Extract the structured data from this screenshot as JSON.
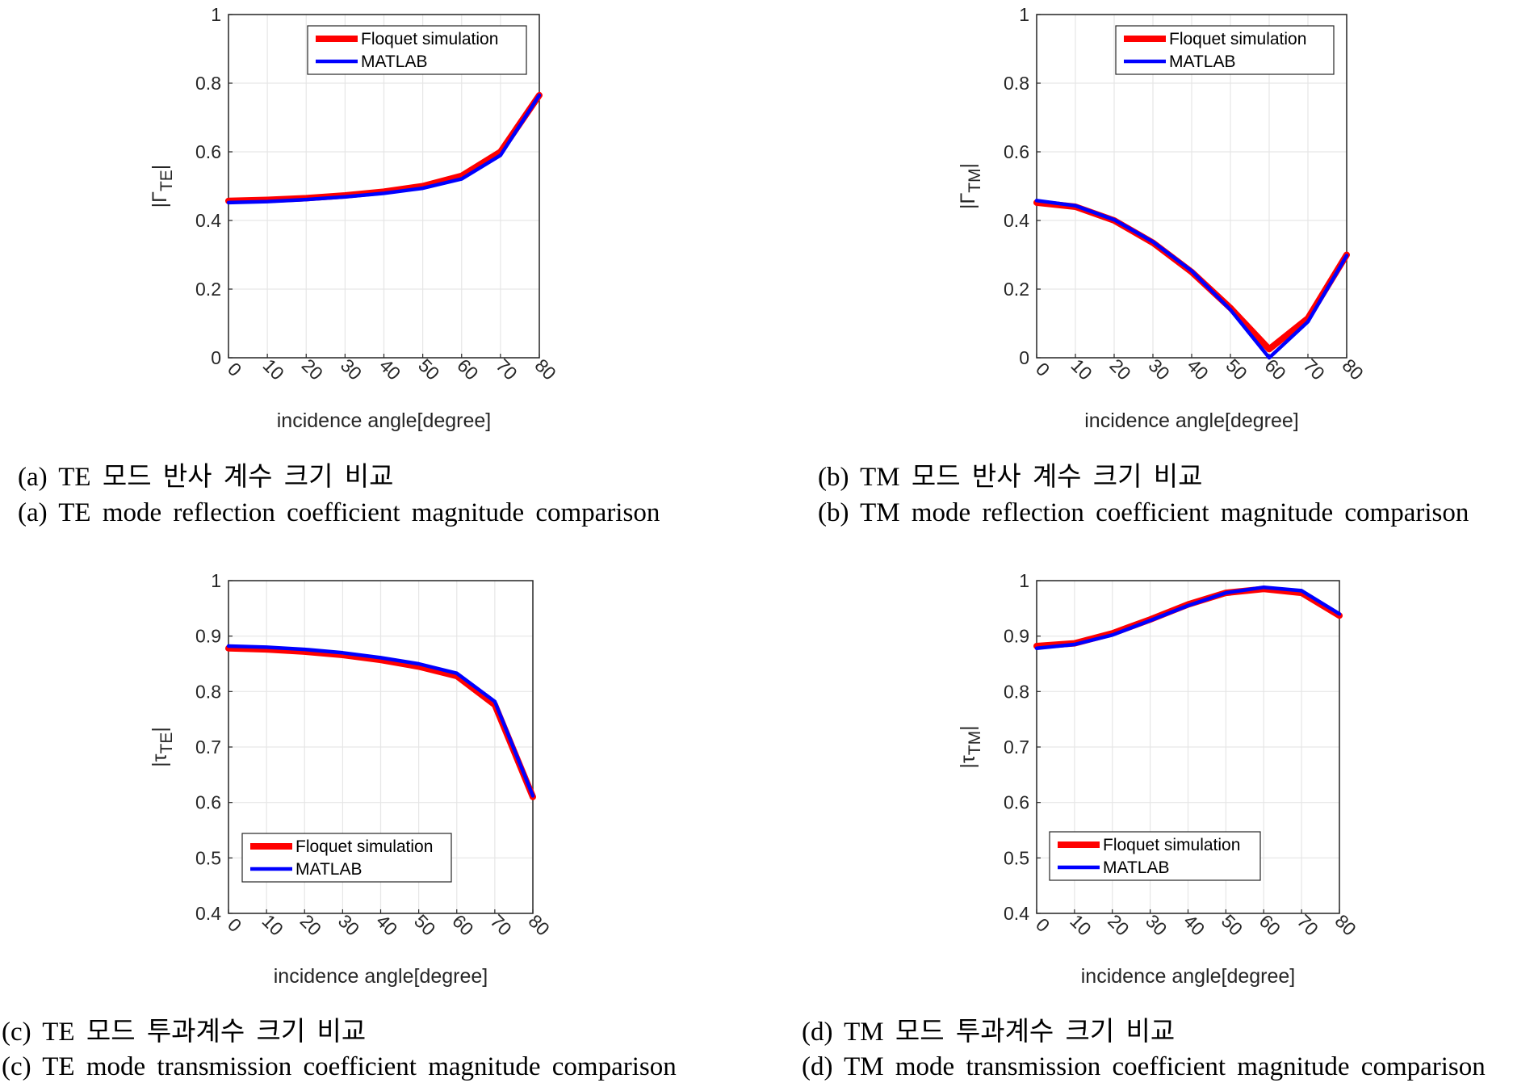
{
  "chart_data": [
    {
      "id": "a",
      "type": "line",
      "xlabel": "incidence angle[degree]",
      "ylabel_main": "|Γ",
      "ylabel_sub": "TE",
      "ylabel_end": "|",
      "x": [
        0,
        10,
        20,
        30,
        40,
        50,
        60,
        70,
        80
      ],
      "xlim": [
        0,
        80
      ],
      "ylim": [
        0,
        1
      ],
      "yticks": [
        0,
        0.2,
        0.4,
        0.6,
        0.8,
        1
      ],
      "ytick_labels": [
        "0",
        "0.2",
        "0.4",
        "0.6",
        "0.8",
        "1"
      ],
      "xtick_labels": [
        "0",
        "10",
        "20",
        "30",
        "40",
        "50",
        "60",
        "70",
        "80"
      ],
      "legend_position": "top-right",
      "series": [
        {
          "name": "Floquet simulation",
          "color": "#ff0000",
          "values": [
            0.457,
            0.46,
            0.465,
            0.473,
            0.484,
            0.5,
            0.53,
            0.6,
            0.765
          ]
        },
        {
          "name": "MATLAB",
          "color": "#0000ff",
          "values": [
            0.452,
            0.455,
            0.461,
            0.469,
            0.479,
            0.494,
            0.521,
            0.59,
            0.765
          ]
        }
      ],
      "caption_ko": "(a) TE 모드 반사 계수 크기 비교",
      "caption_en": "(a) TE mode reflection coefficient magnitude comparison"
    },
    {
      "id": "b",
      "type": "line",
      "xlabel": "incidence angle[degree]",
      "ylabel_main": "|Γ",
      "ylabel_sub": "TM",
      "ylabel_end": "|",
      "x": [
        0,
        10,
        20,
        30,
        40,
        50,
        60,
        70,
        80
      ],
      "xlim": [
        0,
        80
      ],
      "ylim": [
        0,
        1
      ],
      "yticks": [
        0,
        0.2,
        0.4,
        0.6,
        0.8,
        1
      ],
      "ytick_labels": [
        "0",
        "0.2",
        "0.4",
        "0.6",
        "0.8",
        "1"
      ],
      "xtick_labels": [
        "0",
        "10",
        "20",
        "30",
        "40",
        "50",
        "60",
        "70",
        "80"
      ],
      "legend_position": "top-right",
      "series": [
        {
          "name": "Floquet simulation",
          "color": "#ff0000",
          "values": [
            0.452,
            0.44,
            0.4,
            0.335,
            0.25,
            0.145,
            0.025,
            0.115,
            0.3
          ]
        },
        {
          "name": "MATLAB",
          "color": "#0000ff",
          "values": [
            0.458,
            0.443,
            0.402,
            0.338,
            0.253,
            0.14,
            0.0,
            0.105,
            0.298
          ]
        }
      ],
      "caption_ko": "(b) TM 모드 반사 계수 크기 비교",
      "caption_en": "(b) TM mode reflection coefficient magnitude comparison"
    },
    {
      "id": "c",
      "type": "line",
      "xlabel": "incidence angle[degree]",
      "ylabel_main": "|τ",
      "ylabel_sub": "TE",
      "ylabel_end": "|",
      "x": [
        0,
        10,
        20,
        30,
        40,
        50,
        60,
        70,
        80
      ],
      "xlim": [
        0,
        80
      ],
      "ylim": [
        0.4,
        1
      ],
      "yticks": [
        0.4,
        0.5,
        0.6,
        0.7,
        0.8,
        0.9,
        1
      ],
      "ytick_labels": [
        "0.4",
        "0.5",
        "0.6",
        "0.7",
        "0.8",
        "0.9",
        "1"
      ],
      "xtick_labels": [
        "0",
        "10",
        "20",
        "30",
        "40",
        "50",
        "60",
        "70",
        "80"
      ],
      "legend_position": "bottom-left",
      "series": [
        {
          "name": "Floquet simulation",
          "color": "#ff0000",
          "values": [
            0.878,
            0.876,
            0.872,
            0.866,
            0.857,
            0.845,
            0.828,
            0.776,
            0.61
          ]
        },
        {
          "name": "MATLAB",
          "color": "#0000ff",
          "values": [
            0.882,
            0.88,
            0.876,
            0.87,
            0.861,
            0.85,
            0.833,
            0.782,
            0.612
          ]
        }
      ],
      "caption_ko": "(c) TE 모드 투과계수 크기 비교",
      "caption_en": "(c) TE mode transmission coefficient magnitude comparison"
    },
    {
      "id": "d",
      "type": "line",
      "xlabel": "incidence angle[degree]",
      "ylabel_main": "|τ",
      "ylabel_sub": "TM",
      "ylabel_end": "|",
      "x": [
        0,
        10,
        20,
        30,
        40,
        50,
        60,
        70,
        80
      ],
      "xlim": [
        0,
        80
      ],
      "ylim": [
        0.4,
        1
      ],
      "yticks": [
        0.4,
        0.5,
        0.6,
        0.7,
        0.8,
        0.9,
        1
      ],
      "ytick_labels": [
        "0.4",
        "0.5",
        "0.6",
        "0.7",
        "0.8",
        "0.9",
        "1"
      ],
      "xtick_labels": [
        "0",
        "10",
        "20",
        "30",
        "40",
        "50",
        "60",
        "70",
        "80"
      ],
      "legend_position": "bottom-left",
      "series": [
        {
          "name": "Floquet simulation",
          "color": "#ff0000",
          "values": [
            0.882,
            0.887,
            0.905,
            0.93,
            0.957,
            0.978,
            0.985,
            0.978,
            0.937
          ]
        },
        {
          "name": "MATLAB",
          "color": "#0000ff",
          "values": [
            0.878,
            0.885,
            0.902,
            0.928,
            0.955,
            0.978,
            0.988,
            0.982,
            0.94
          ]
        }
      ],
      "caption_ko": "(d) TM 모드 투과계수 크기 비교",
      "caption_en": "(d) TM mode transmission coefficient magnitude comparison"
    }
  ]
}
